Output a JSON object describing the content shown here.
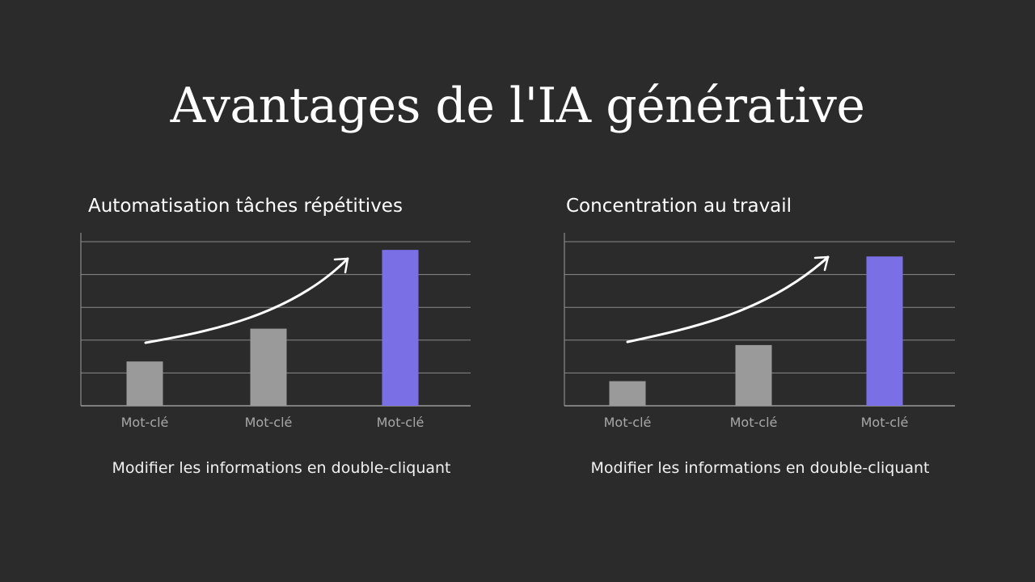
{
  "title": "Avantages de l'IA générative",
  "colors": {
    "background": "#2b2b2c",
    "bar_default": "#9a9a9a",
    "bar_highlight": "#7b6fe6",
    "grid": "#8a8a8a",
    "arrow": "#ffffff"
  },
  "chart_data": [
    {
      "type": "bar",
      "title": "Automatisation tâches répétitives",
      "categories": [
        "Mot-clé",
        "Mot-clé",
        "Mot-clé"
      ],
      "values": [
        1.35,
        2.35,
        4.75
      ],
      "highlight_index": 2,
      "ylim": [
        0,
        5
      ],
      "grid": true,
      "y_tick_labels": false,
      "annotation": "upward-trend-arrow",
      "caption": "Modifier les informations en double-cliquant"
    },
    {
      "type": "bar",
      "title": "Concentration au travail",
      "categories": [
        "Mot-clé",
        "Mot-clé",
        "Mot-clé"
      ],
      "values": [
        0.75,
        1.85,
        4.55
      ],
      "highlight_index": 2,
      "ylim": [
        0,
        5
      ],
      "grid": true,
      "y_tick_labels": false,
      "annotation": "upward-trend-arrow",
      "caption": "Modifier les informations en double-cliquant"
    }
  ]
}
